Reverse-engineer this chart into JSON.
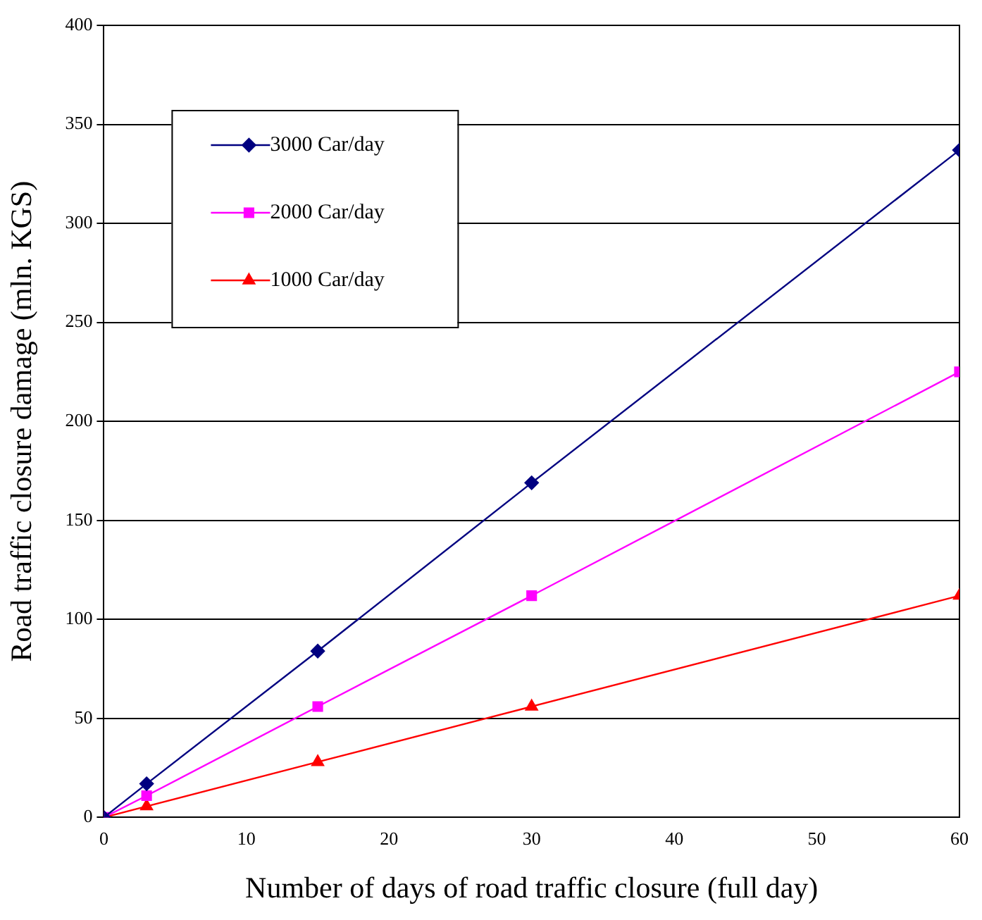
{
  "chart_data": {
    "type": "line",
    "xlabel": "Number of days of road traffic closure (full day)",
    "ylabel": "Road traffic closure damage (mln. KGS)",
    "x": [
      0,
      3,
      15,
      30,
      60
    ],
    "series": [
      {
        "name": "3000 Car/day",
        "color": "#000080",
        "marker": "diamond",
        "values": [
          0,
          17,
          84,
          169,
          337
        ]
      },
      {
        "name": "2000 Car/day",
        "color": "#ff00ff",
        "marker": "square",
        "values": [
          0,
          11,
          56,
          112,
          225
        ]
      },
      {
        "name": "1000 Car/day",
        "color": "#ff0000",
        "marker": "triangle",
        "values": [
          0,
          5.6,
          28,
          56,
          112
        ]
      }
    ],
    "xlim": [
      0,
      60
    ],
    "xticks": [
      0,
      10,
      20,
      30,
      40,
      50,
      60
    ],
    "ylim": [
      0,
      400
    ],
    "yticks": [
      0,
      50,
      100,
      150,
      200,
      250,
      300,
      350,
      400
    ],
    "grid": "y",
    "legend": "top left",
    "line_style": "solid"
  }
}
